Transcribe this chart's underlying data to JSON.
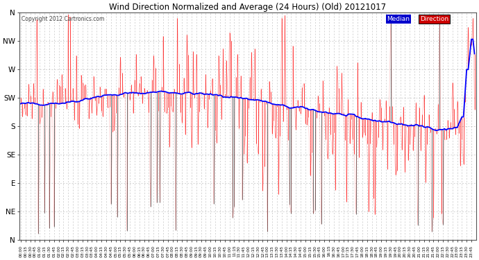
{
  "title": "Wind Direction Normalized and Average (24 Hours) (Old) 20121017",
  "copyright": "Copyright 2012 Cartronics.com",
  "direction_color": "#ff0000",
  "median_color": "#0000ff",
  "raw_color": "#000000",
  "bg_color": "#ffffff",
  "grid_color": "#999999",
  "ytick_labels": [
    "N",
    "NW",
    "W",
    "SW",
    "S",
    "SE",
    "E",
    "NE",
    "N"
  ],
  "ytick_values": [
    360,
    315,
    270,
    225,
    180,
    135,
    90,
    45,
    0
  ],
  "n_points": 288,
  "random_seed": 42,
  "fig_width": 6.9,
  "fig_height": 3.75,
  "dpi": 100
}
